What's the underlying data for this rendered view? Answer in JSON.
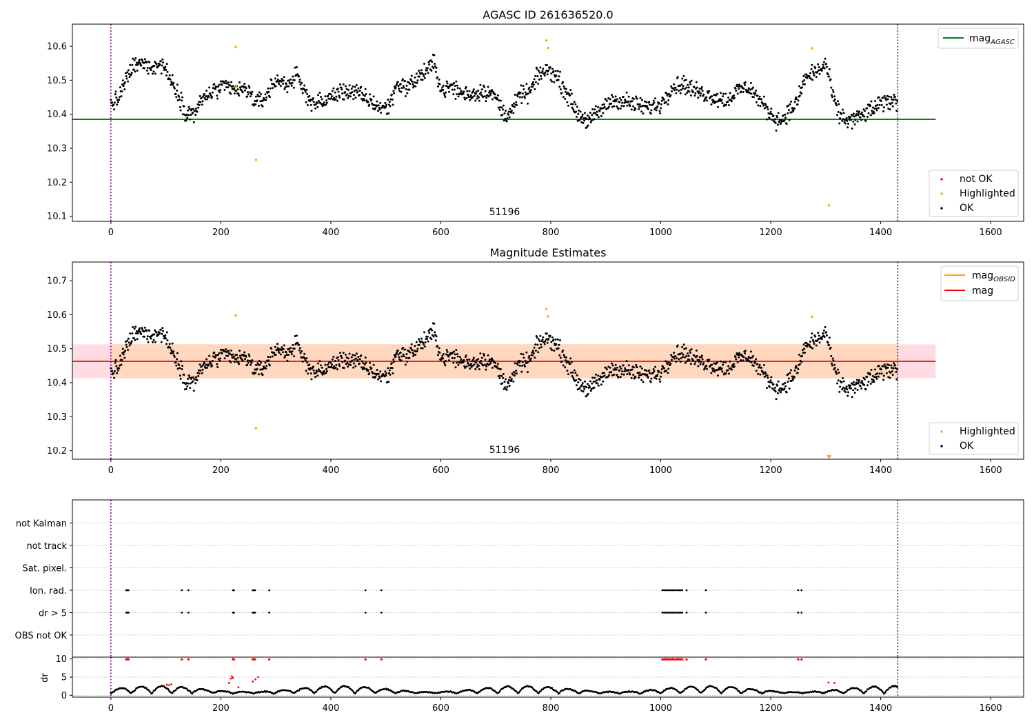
{
  "chart_data": [
    {
      "type": "scatter",
      "title": "AGASC ID 261636520.0",
      "annotation": "51196",
      "xlim": [
        -70,
        1660
      ],
      "ylim": [
        10.085,
        10.665
      ],
      "xticks": [
        0,
        200,
        400,
        600,
        800,
        1000,
        1200,
        1400,
        1600
      ],
      "yticks": [
        10.1,
        10.2,
        10.3,
        10.4,
        10.5,
        10.6
      ],
      "vlines": [
        0,
        1431
      ],
      "legend_upper": [
        {
          "label_main": "mag",
          "label_sub": "AGASC",
          "color": "#008000"
        }
      ],
      "legend_lower": [
        {
          "label": "not OK",
          "color": "#ff0000"
        },
        {
          "label": "Highlighted",
          "color": "#ffa500"
        },
        {
          "label": "OK",
          "color": "#000000"
        }
      ],
      "reference_line": {
        "y": 10.385,
        "x_range": [
          -70,
          1500
        ],
        "color": "#008000"
      },
      "highlighted_points": [
        {
          "x": 227,
          "y": 10.598
        },
        {
          "x": 228,
          "y": 10.48
        },
        {
          "x": 264,
          "y": 10.266
        },
        {
          "x": 792,
          "y": 10.617
        },
        {
          "x": 795,
          "y": 10.595
        },
        {
          "x": 1275,
          "y": 10.594
        },
        {
          "x": 1306,
          "y": 10.132
        }
      ],
      "series_profile": {
        "name": "OK",
        "x": [
          0,
          12,
          25,
          40,
          60,
          80,
          95,
          105,
          120,
          135,
          150,
          170,
          190,
          210,
          230,
          250,
          265,
          280,
          300,
          320,
          340,
          350,
          370,
          390,
          410,
          430,
          450,
          470,
          490,
          505,
          520,
          540,
          560,
          575,
          590,
          600,
          620,
          640,
          660,
          680,
          700,
          715,
          730,
          745,
          760,
          780,
          800,
          815,
          830,
          850,
          870,
          890,
          910,
          930,
          950,
          975,
          1000,
          1020,
          1040,
          1060,
          1080,
          1100,
          1120,
          1140,
          1160,
          1180,
          1200,
          1215,
          1230,
          1250,
          1260,
          1275,
          1290,
          1300,
          1315,
          1325,
          1340,
          1360,
          1380,
          1400,
          1420,
          1430
        ],
        "y": [
          10.43,
          10.44,
          10.49,
          10.54,
          10.55,
          10.54,
          10.55,
          10.51,
          10.47,
          10.41,
          10.4,
          10.45,
          10.47,
          10.48,
          10.47,
          10.47,
          10.43,
          10.45,
          10.5,
          10.49,
          10.51,
          10.47,
          10.43,
          10.44,
          10.46,
          10.47,
          10.46,
          10.44,
          10.42,
          10.42,
          10.49,
          10.48,
          10.51,
          10.53,
          10.55,
          10.47,
          10.48,
          10.46,
          10.46,
          10.47,
          10.45,
          10.4,
          10.41,
          10.46,
          10.46,
          10.52,
          10.53,
          10.5,
          10.46,
          10.4,
          10.38,
          10.41,
          10.44,
          10.44,
          10.43,
          10.42,
          10.43,
          10.48,
          10.49,
          10.47,
          10.46,
          10.45,
          10.44,
          10.47,
          10.48,
          10.44,
          10.4,
          10.38,
          10.4,
          10.44,
          10.5,
          10.52,
          10.53,
          10.55,
          10.44,
          10.4,
          10.38,
          10.39,
          10.41,
          10.43,
          10.44,
          10.44
        ],
        "spread": 0.022
      }
    },
    {
      "type": "scatter",
      "title": "Magnitude Estimates",
      "annotation": "51196",
      "xlim": [
        -70,
        1660
      ],
      "ylim": [
        10.175,
        10.755
      ],
      "xticks": [
        0,
        200,
        400,
        600,
        800,
        1000,
        1200,
        1400,
        1600
      ],
      "yticks": [
        10.2,
        10.3,
        10.4,
        10.5,
        10.6,
        10.7
      ],
      "vlines": [
        0,
        1431
      ],
      "legend_upper": [
        {
          "label_main": "mag",
          "label_sub": "OBSID",
          "color": "#ffa500"
        },
        {
          "label_main": "mag",
          "label_sub": "",
          "color": "#ff0000"
        }
      ],
      "legend_lower": [
        {
          "label": "Highlighted",
          "color": "#ffa500"
        },
        {
          "label": "OK",
          "color": "#000000"
        }
      ],
      "reference_line": {
        "y": 10.463,
        "x_range": [
          -70,
          1500
        ],
        "color": "#ff0000"
      },
      "band": {
        "y_low": 10.413,
        "y_high": 10.513,
        "x_range": [
          -70,
          1500
        ]
      },
      "highlighted_points": [
        {
          "x": 227,
          "y": 10.598
        },
        {
          "x": 264,
          "y": 10.266
        },
        {
          "x": 792,
          "y": 10.617
        },
        {
          "x": 795,
          "y": 10.595
        },
        {
          "x": 1275,
          "y": 10.594
        }
      ],
      "offscale_marker": {
        "x": 1306,
        "y": 10.18,
        "color": "#ffa500"
      }
    },
    {
      "type": "scatter",
      "title": "",
      "xlim": [
        -70,
        1660
      ],
      "xticks": [
        0,
        200,
        400,
        600,
        800,
        1000,
        1200,
        1400,
        1600
      ],
      "vlines": [
        0,
        1431
      ],
      "flag_categories": [
        "not Kalman",
        "not track",
        "Sat. pixel.",
        "Ion. rad.",
        "dr > 5",
        "OBS not OK"
      ],
      "flag_points": {
        "Ion. rad.": [
          28,
          30,
          32,
          129,
          141,
          222,
          224,
          258,
          260,
          262,
          288,
          463,
          492,
          1003,
          1006,
          1009,
          1012,
          1015,
          1018,
          1021,
          1024,
          1027,
          1030,
          1033,
          1036,
          1039,
          1047,
          1082,
          1250,
          1256
        ],
        "dr > 5": [
          28,
          30,
          32,
          129,
          141,
          222,
          224,
          258,
          260,
          262,
          288,
          463,
          492,
          1003,
          1006,
          1009,
          1012,
          1015,
          1018,
          1021,
          1024,
          1027,
          1030,
          1033,
          1036,
          1039,
          1047,
          1082,
          1250,
          1256
        ]
      },
      "dr_ylabel": "dr",
      "dr_yticks": [
        0,
        5,
        10
      ],
      "dr_ylim": [
        -0.5,
        10.5
      ],
      "dr_clipped_x": [
        28,
        30,
        32,
        129,
        141,
        222,
        224,
        258,
        260,
        262,
        288,
        463,
        492,
        1003,
        1006,
        1009,
        1012,
        1015,
        1018,
        1021,
        1024,
        1027,
        1030,
        1033,
        1036,
        1039,
        1047,
        1082,
        1250,
        1256
      ],
      "dr_red_points": [
        {
          "x": 102,
          "y": 2.9
        },
        {
          "x": 106,
          "y": 2.8
        },
        {
          "x": 110,
          "y": 3.0
        },
        {
          "x": 215,
          "y": 3.4
        },
        {
          "x": 218,
          "y": 4.6
        },
        {
          "x": 220,
          "y": 5.2
        },
        {
          "x": 222,
          "y": 4.8
        },
        {
          "x": 232,
          "y": 2.2
        },
        {
          "x": 258,
          "y": 3.8
        },
        {
          "x": 263,
          "y": 4.4
        },
        {
          "x": 268,
          "y": 5.0
        },
        {
          "x": 1305,
          "y": 3.5
        },
        {
          "x": 1316,
          "y": 3.4
        }
      ]
    }
  ]
}
